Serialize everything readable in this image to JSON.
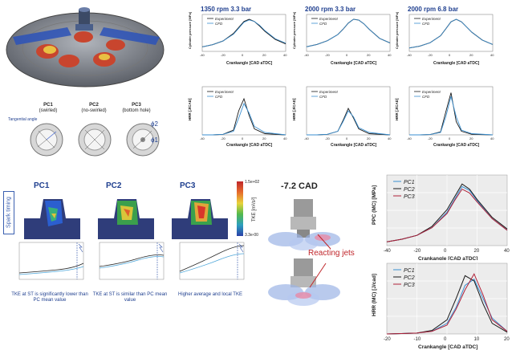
{
  "top_charts": [
    {
      "title": "1350 rpm 3.3 bar",
      "ylabel": "Cylinder pressure [MPa]",
      "xlabel": "Crankangle [CAD aTDC]",
      "legend": [
        "Experiment",
        "CFD"
      ]
    },
    {
      "title": "2000 rpm 3.3 bar",
      "ylabel": "Cylinder pressure [MPa]",
      "xlabel": "Crankangle [CAD aTDC]",
      "legend": [
        "Experiment",
        "CFD"
      ]
    },
    {
      "title": "2000 rpm 6.8 bar",
      "ylabel": "Cylinder pressure [MPa]",
      "xlabel": "Crankangle [CAD aTDC]",
      "legend": [
        "Experiment",
        "CFD"
      ]
    }
  ],
  "hrr_charts": [
    {
      "ylabel": "HRR [J/CAD]",
      "xlabel": "Crankangle [CAD aTDC]",
      "legend": [
        "Experiment",
        "CFD"
      ]
    },
    {
      "ylabel": "HRR [J/CAD]",
      "xlabel": "Crankangle [CAD aTDC]",
      "legend": [
        "Experiment",
        "CFD"
      ]
    },
    {
      "ylabel": "HRR [J/CAD]",
      "xlabel": "Crankangle [CAD aTDC]",
      "legend": [
        "Experiment",
        "CFD"
      ]
    }
  ],
  "prechambers": [
    {
      "name": "PC1",
      "sub": "(swirled)"
    },
    {
      "name": "PC2",
      "sub": "(no-swirled)"
    },
    {
      "name": "PC3",
      "sub": "(bottom hole)"
    }
  ],
  "tangential_label": "Tangential angle",
  "phi_labels": [
    "ϕ2",
    "ϕ1"
  ],
  "spark_label": "Spark timing",
  "tke_panels": [
    {
      "title": "PC1",
      "caption": "TKE at ST is significantly lower than PC mean value"
    },
    {
      "title": "PC2",
      "caption": "TKE at ST is similar than PC mean value"
    },
    {
      "title": "PC3",
      "caption": "Higher average and local TKE"
    }
  ],
  "colorbar": {
    "label": "TKE [m²/s²]",
    "max": "1.5e+02",
    "min": "3.3e-00"
  },
  "cad_label": "-7.2 CAD",
  "reacting_label": "Reacting jets",
  "right_pressure": {
    "ylabel": "P",
    "ylabel_sub": "PC",
    "ylabel_rest": " (MC) [MPa]",
    "xlabel": "Crankangle [CAD aTDC]",
    "legend": [
      "PC1",
      "PC2",
      "PC3"
    ],
    "xticks": [
      "-40",
      "-20",
      "0",
      "20",
      "40"
    ]
  },
  "right_hrr": {
    "ylabel": "HRR (MC) [J/cad]",
    "xlabel": "Crankangle [CAD aTDC]",
    "legend": [
      "PC1",
      "PC2",
      "PC3"
    ],
    "xticks": [
      "-20",
      "-10",
      "0",
      "10",
      "20"
    ]
  },
  "chart_data": [
    {
      "type": "line",
      "title": "1350 rpm 3.3 bar",
      "x": [
        -40,
        -30,
        -20,
        -10,
        -5,
        0,
        5,
        10,
        15,
        20,
        30,
        40
      ],
      "series": [
        {
          "name": "Experiment",
          "values": [
            0.3,
            0.45,
            0.7,
            1.2,
            1.6,
            2.0,
            2.15,
            2.0,
            1.7,
            1.35,
            0.8,
            0.5
          ]
        },
        {
          "name": "CFD",
          "values": [
            0.3,
            0.45,
            0.7,
            1.15,
            1.55,
            1.95,
            2.1,
            2.0,
            1.75,
            1.4,
            0.85,
            0.55
          ]
        }
      ]
    },
    {
      "type": "line",
      "title": "2000 rpm 3.3 bar",
      "x": [
        -40,
        -30,
        -20,
        -10,
        -5,
        0,
        5,
        10,
        15,
        20,
        30,
        40
      ],
      "series": [
        {
          "name": "Experiment",
          "values": [
            0.3,
            0.45,
            0.7,
            1.1,
            1.45,
            1.85,
            2.1,
            2.05,
            1.8,
            1.45,
            0.85,
            0.55
          ]
        },
        {
          "name": "CFD",
          "values": [
            0.3,
            0.45,
            0.7,
            1.1,
            1.45,
            1.85,
            2.1,
            2.05,
            1.8,
            1.45,
            0.85,
            0.55
          ]
        }
      ]
    },
    {
      "type": "line",
      "title": "2000 rpm 6.8 bar",
      "x": [
        -40,
        -30,
        -20,
        -10,
        -5,
        0,
        5,
        10,
        15,
        20,
        30,
        40
      ],
      "series": [
        {
          "name": "Experiment",
          "values": [
            0.4,
            0.6,
            1.0,
            1.8,
            2.6,
            3.4,
            3.7,
            3.4,
            2.8,
            2.2,
            1.3,
            0.8
          ]
        },
        {
          "name": "CFD",
          "values": [
            0.4,
            0.6,
            1.0,
            1.8,
            2.6,
            3.4,
            3.7,
            3.4,
            2.8,
            2.2,
            1.3,
            0.8
          ]
        }
      ]
    }
  ]
}
